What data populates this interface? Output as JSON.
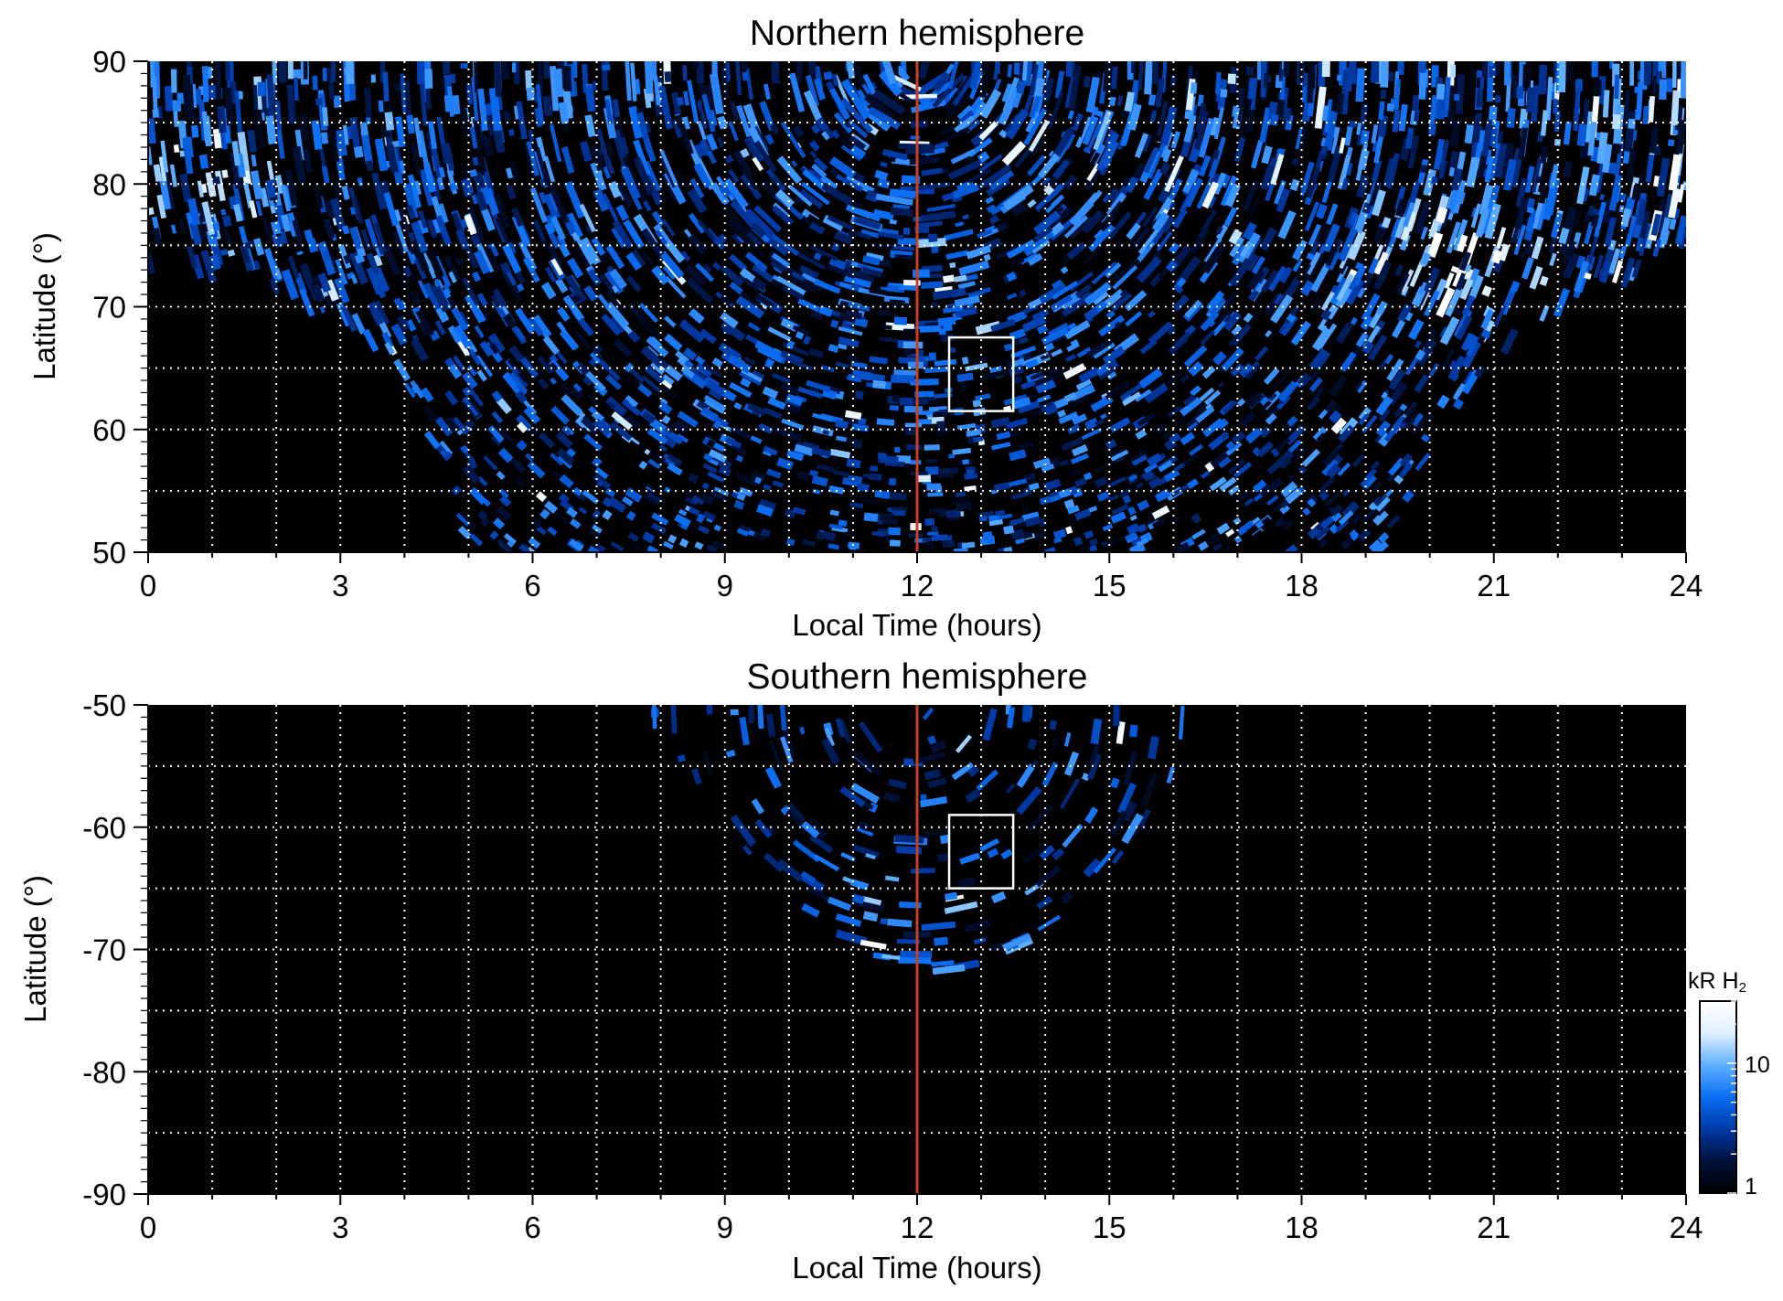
{
  "chart_data": [
    {
      "type": "heatmap",
      "title": "Northern hemisphere",
      "xlabel": "Local Time (hours)",
      "ylabel": "Latitude (°)",
      "xlim": [
        0,
        24
      ],
      "ylim": [
        50,
        90
      ],
      "x_ticks": [
        "0",
        "3",
        "6",
        "9",
        "12",
        "15",
        "18",
        "21",
        "24"
      ],
      "y_ticks": [
        "50",
        "60",
        "70",
        "80",
        "90"
      ],
      "x_grid_step_hours": 1,
      "y_grid_step_deg": 5,
      "grid": true,
      "noon_line_hours": 12,
      "highlight_box": {
        "lt": [
          12.5,
          13.5
        ],
        "lat": [
          61.5,
          67.5
        ]
      },
      "coverage_boundary": [
        {
          "lt": 0,
          "lat": 73.5
        },
        {
          "lt": 1.5,
          "lat": 72.5
        },
        {
          "lt": 3,
          "lat": 69
        },
        {
          "lt": 4,
          "lat": 64
        },
        {
          "lt": 4.7,
          "lat": 56
        },
        {
          "lt": 5,
          "lat": 50
        },
        {
          "lt": 19.5,
          "lat": 50
        },
        {
          "lt": 20,
          "lat": 58
        },
        {
          "lt": 21,
          "lat": 66
        },
        {
          "lt": 22.5,
          "lat": 72
        },
        {
          "lt": 24,
          "lat": 73.5
        }
      ],
      "bright_regions": [
        {
          "lt": 20.5,
          "lat": 74,
          "level": "high"
        },
        {
          "lt": 0.5,
          "lat": 80,
          "level": "medium"
        },
        {
          "lt": 23.5,
          "lat": 85,
          "level": "medium"
        }
      ]
    },
    {
      "type": "heatmap",
      "title": "Southern hemisphere",
      "xlabel": "Local Time (hours)",
      "ylabel": "Latitude (°)",
      "xlim": [
        0,
        24
      ],
      "ylim": [
        -90,
        -50
      ],
      "x_ticks": [
        "0",
        "3",
        "6",
        "9",
        "12",
        "15",
        "18",
        "21",
        "24"
      ],
      "y_ticks": [
        "-90",
        "-80",
        "-70",
        "-60",
        "-50"
      ],
      "x_grid_step_hours": 1,
      "y_grid_step_deg": 5,
      "grid": true,
      "noon_line_hours": 12,
      "highlight_box": {
        "lt": [
          12.5,
          13.5
        ],
        "lat": [
          -65,
          -59
        ]
      },
      "coverage_boundary": [
        {
          "lt": 7.8,
          "lat": -50
        },
        {
          "lt": 8.5,
          "lat": -56
        },
        {
          "lt": 9.5,
          "lat": -63
        },
        {
          "lt": 10.5,
          "lat": -68
        },
        {
          "lt": 11.5,
          "lat": -71.5
        },
        {
          "lt": 12.5,
          "lat": -72
        },
        {
          "lt": 13.5,
          "lat": -70.5
        },
        {
          "lt": 14.5,
          "lat": -67
        },
        {
          "lt": 15.5,
          "lat": -61
        },
        {
          "lt": 16.2,
          "lat": -54
        },
        {
          "lt": 16.4,
          "lat": -50
        }
      ],
      "bright_regions": [
        {
          "lt": 12.5,
          "lat": -67,
          "level": "medium"
        }
      ]
    }
  ],
  "colorbar": {
    "label": "kR H",
    "label_subscript": "2",
    "scale": "log",
    "range": [
      1,
      30
    ],
    "tick_labels": [
      "1",
      "10"
    ],
    "colors": [
      "#000000",
      "#00113a",
      "#003aa8",
      "#0a6ef5",
      "#5fb0ff",
      "#dff0ff",
      "#ffffff"
    ]
  },
  "colors": {
    "noon_line": "#c8401c",
    "grid": "#ffffff",
    "box": "#ffffff",
    "background": "#000000"
  }
}
